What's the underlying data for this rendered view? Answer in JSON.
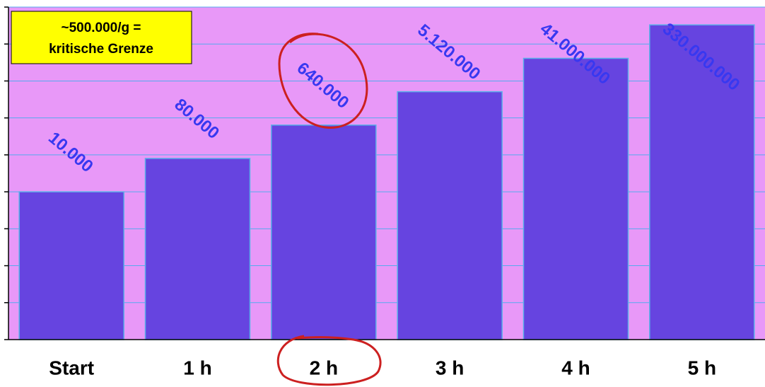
{
  "chart_data": {
    "type": "bar",
    "annotation": [
      "~500.000/g =",
      "kritische Grenze"
    ],
    "categories": [
      "Start",
      "1 h",
      "2 h",
      "3 h",
      "4 h",
      "5 h"
    ],
    "values": [
      10000,
      80000,
      640000,
      5120000,
      41000000,
      330000000
    ],
    "value_labels": [
      "10.000",
      "80.000",
      "640.000",
      "5.120.000",
      "41.000.000",
      "330.000.000"
    ],
    "color": "#6644e0",
    "log_scale": true,
    "ylim": [
      1,
      1000000000
    ],
    "yticks": [
      1,
      10,
      100,
      1000,
      10000,
      100000,
      1000000,
      10000000,
      100000000,
      1000000000
    ],
    "grid": true
  }
}
